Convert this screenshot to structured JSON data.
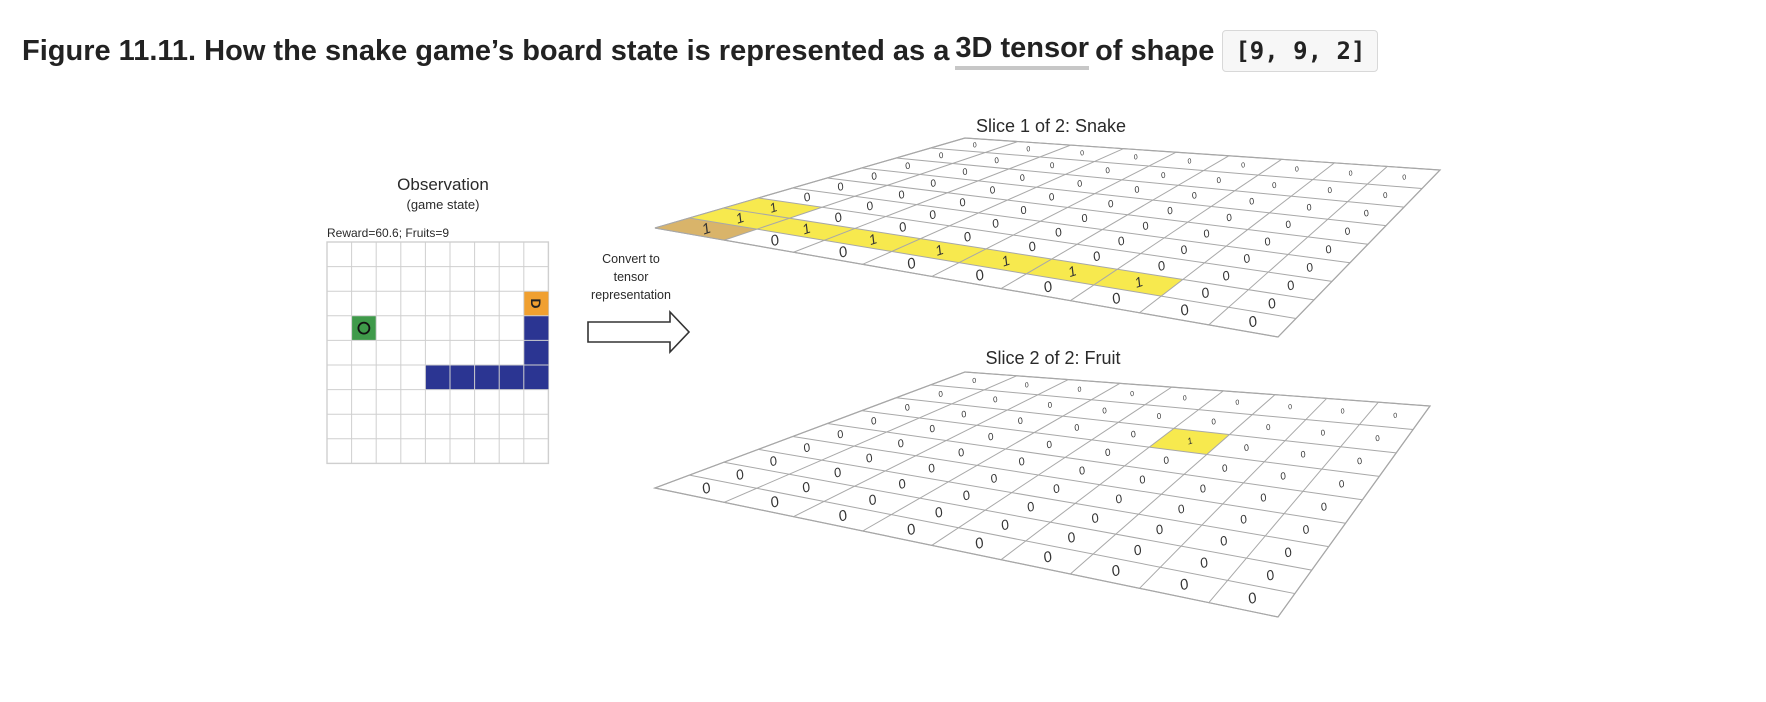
{
  "caption": {
    "prefix": "Figure 11.11. How the snake game’s board state is represented as a",
    "link": "3D tensor",
    "suffix": "of shape",
    "code": "[9, 9, 2]"
  },
  "observation": {
    "title": "Observation",
    "subtitle": "(game state)",
    "status": "Reward=60.6; Fruits=9",
    "size": 9,
    "fruit": [
      3,
      1
    ],
    "fruit_glyph": "O",
    "head": [
      2,
      8
    ],
    "head_glyph": "D",
    "body": [
      [
        3,
        8
      ],
      [
        4,
        8
      ],
      [
        5,
        4
      ],
      [
        5,
        5
      ],
      [
        5,
        6
      ],
      [
        5,
        7
      ],
      [
        5,
        8
      ]
    ],
    "colors": {
      "fruit": "#3f9a4a",
      "head": "#f0a030",
      "body": "#2b3592",
      "grid": "#cfcfcf"
    }
  },
  "arrow": {
    "label_lines": [
      "Convert to",
      "tensor",
      "representation"
    ]
  },
  "slices": [
    {
      "title": "Slice 1 of 2: Snake",
      "ones": [
        [
          0,
          0
        ],
        [
          1,
          0
        ],
        [
          1,
          1
        ],
        [
          1,
          2
        ],
        [
          1,
          3
        ],
        [
          1,
          4
        ],
        [
          1,
          5
        ],
        [
          1,
          6
        ],
        [
          2,
          0
        ]
      ],
      "head_cell": [
        0,
        0
      ],
      "zero_glyph": "0",
      "one_glyph": "1",
      "colors": {
        "one": "#f7e94e",
        "head": "#d9b46a"
      }
    },
    {
      "title": "Slice 2 of 2: Fruit",
      "ones": [
        [
          6,
          5
        ]
      ],
      "zero_glyph": "0",
      "one_glyph": "1",
      "colors": {
        "one": "#f7e94e"
      }
    }
  ]
}
